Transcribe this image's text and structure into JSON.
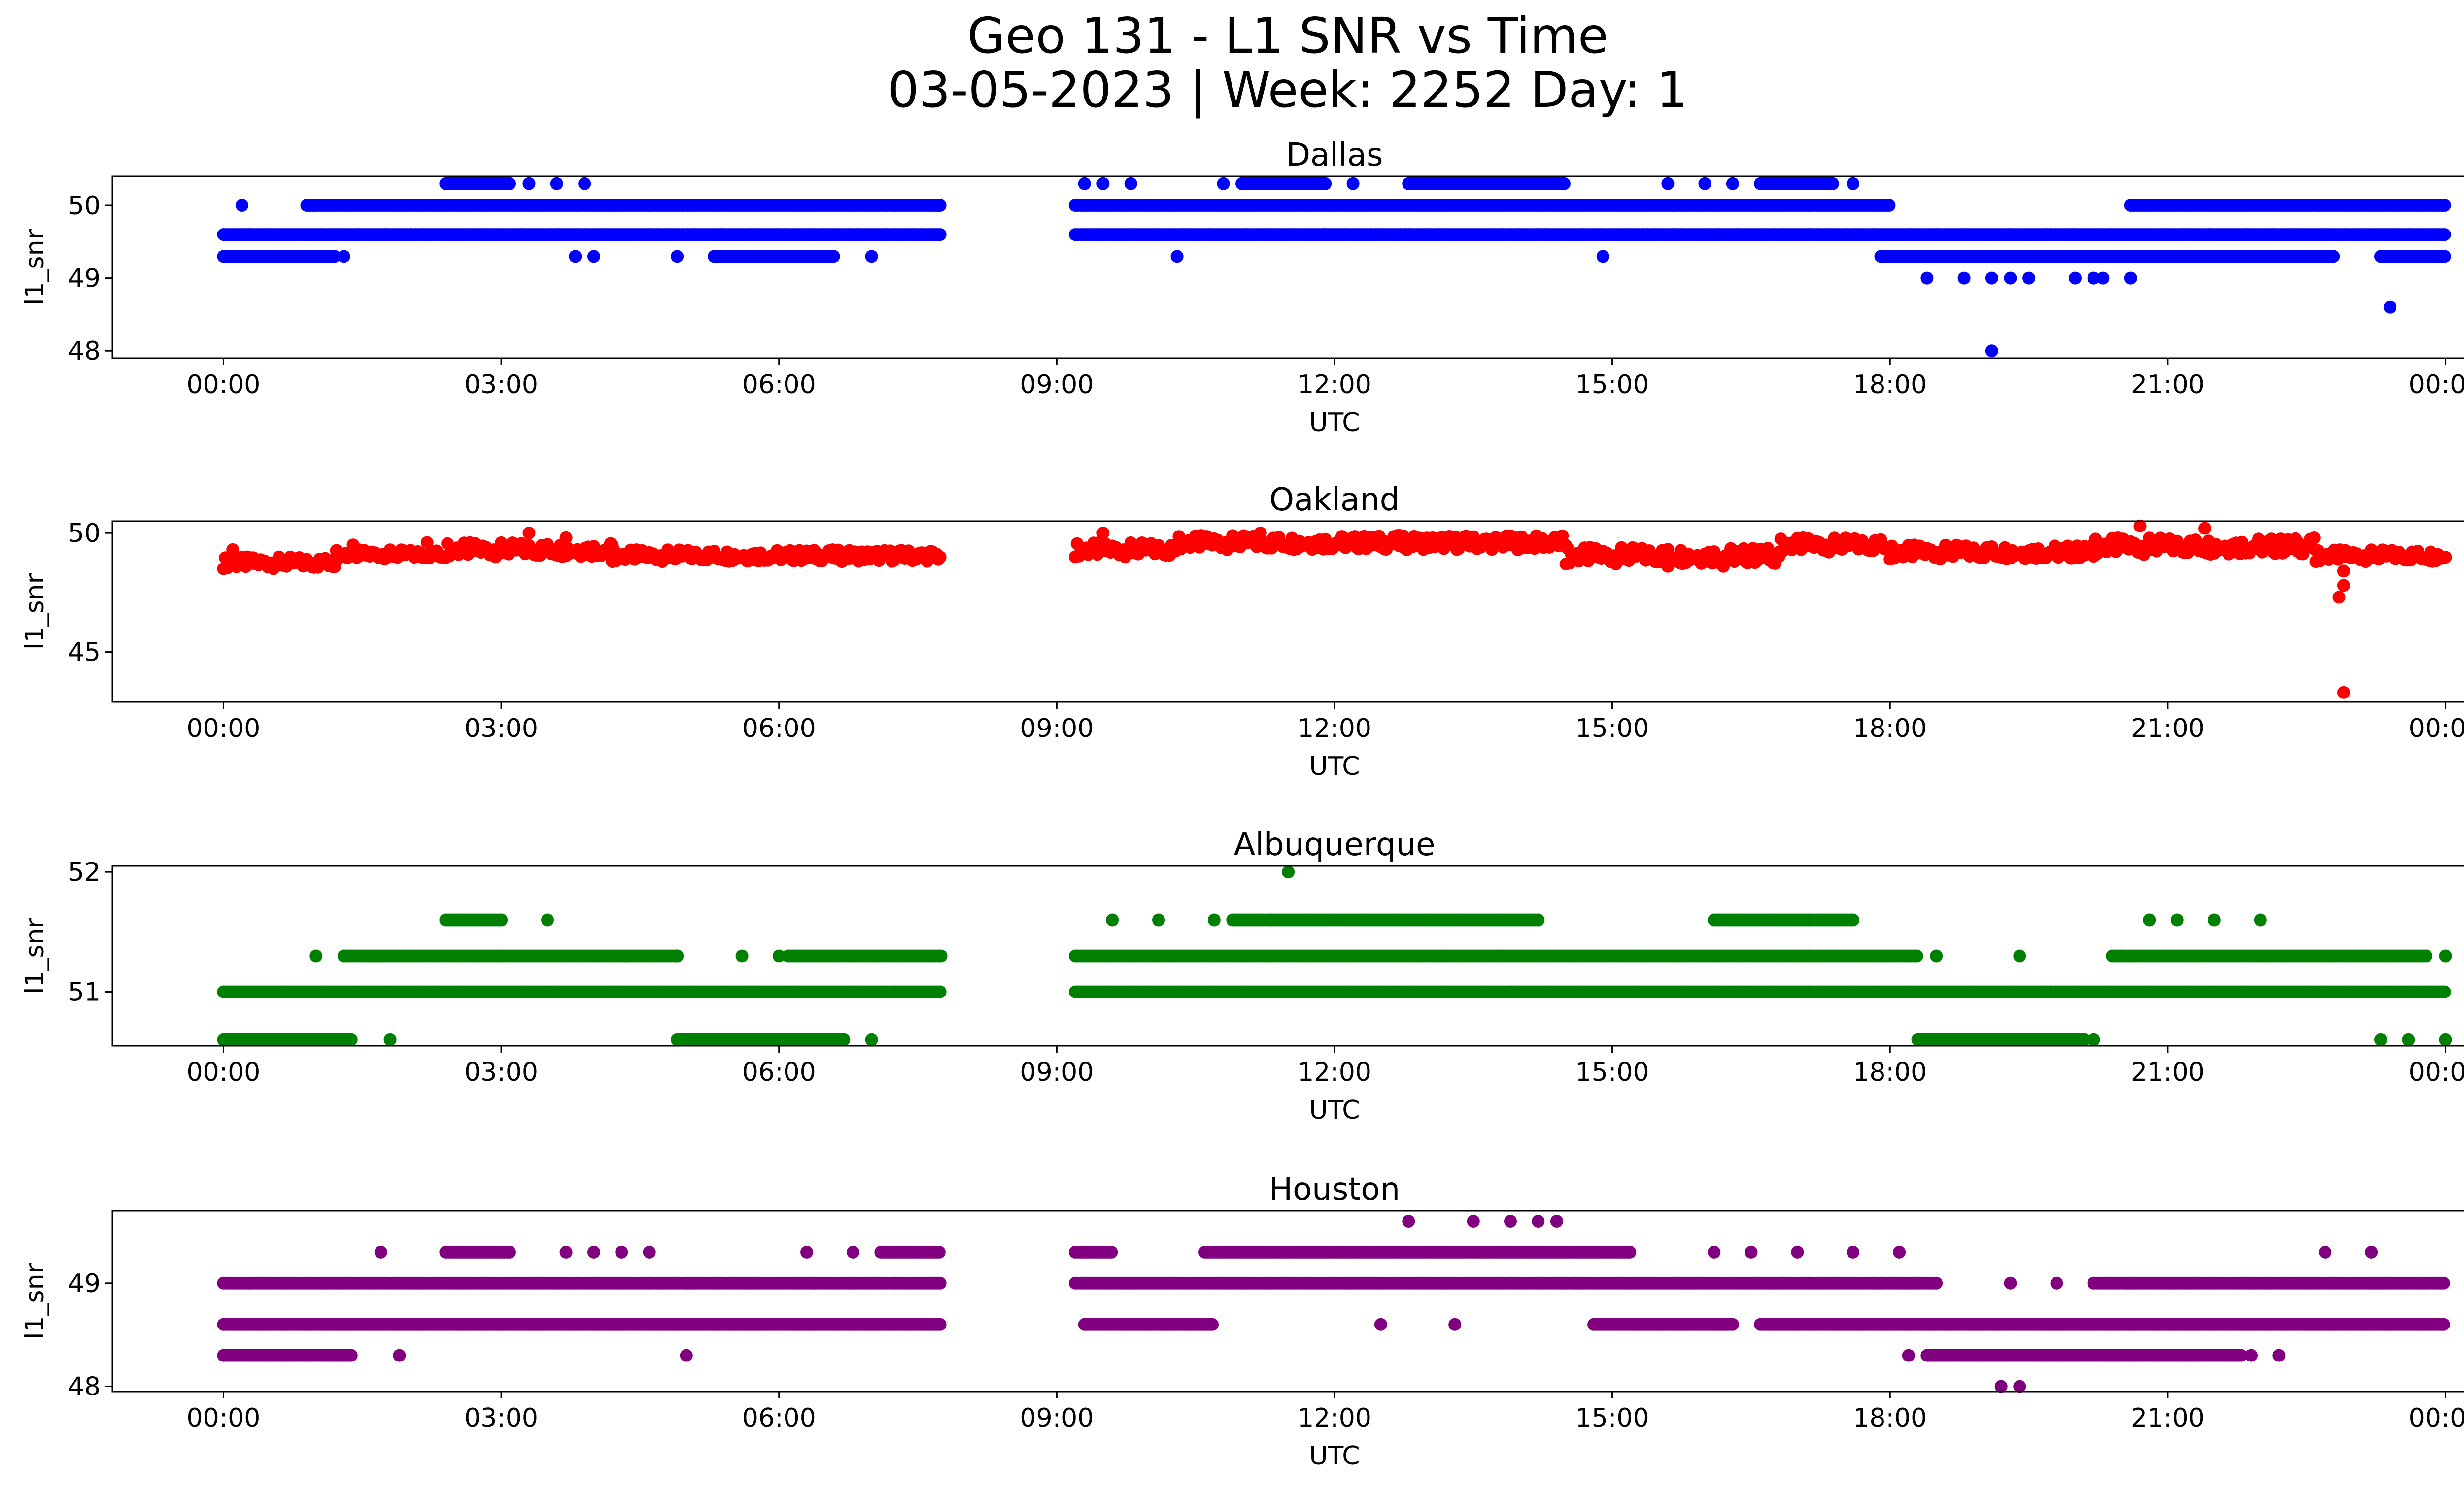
{
  "figure": {
    "title_line1": "Geo 131 - L1 SNR vs Time",
    "title_line2": "03-05-2023 | Week: 2252 Day: 1"
  },
  "chart_data": [
    {
      "type": "scatter",
      "title": "Dallas",
      "xlabel": "UTC",
      "ylabel": "l1_snr",
      "color": "#0000ff",
      "x_ticks": [
        "00:00",
        "03:00",
        "06:00",
        "09:00",
        "12:00",
        "15:00",
        "18:00",
        "21:00",
        "00:00"
      ],
      "x_unit": "hours UTC",
      "xlim": [
        -1.2,
        25.2
      ],
      "y_ticks": [
        48,
        49,
        50
      ],
      "ylim": [
        47.9,
        50.4
      ],
      "series": [
        {
          "values": [
            {
              "level": 49.6,
              "from": 0.0,
              "to": 7.75
            },
            {
              "level": 49.6,
              "from": 9.2,
              "to": 24.0
            },
            {
              "level": 50.0,
              "from": 0.9,
              "to": 4.2
            },
            {
              "level": 50.0,
              "from": 4.2,
              "to": 7.75
            },
            {
              "level": 50.0,
              "from": 9.2,
              "to": 18.0
            },
            {
              "level": 50.0,
              "from": 20.6,
              "to": 24.0
            },
            {
              "level": 49.3,
              "from": 0.0,
              "to": 1.2
            },
            {
              "level": 49.3,
              "from": 5.3,
              "to": 6.6
            },
            {
              "level": 49.3,
              "from": 17.9,
              "to": 22.8
            },
            {
              "level": 49.3,
              "from": 23.3,
              "to": 24.0
            },
            {
              "level": 50.3,
              "from": 2.4,
              "to": 3.1
            },
            {
              "level": 50.3,
              "from": 11.0,
              "to": 11.9
            },
            {
              "level": 50.3,
              "from": 12.8,
              "to": 14.5
            },
            {
              "level": 50.3,
              "from": 16.6,
              "to": 17.4
            }
          ]
        },
        {
          "points": [
            [
              0.2,
              50.0
            ],
            [
              3.3,
              50.3
            ],
            [
              3.6,
              50.3
            ],
            [
              3.9,
              50.3
            ],
            [
              1.3,
              49.3
            ],
            [
              3.8,
              49.3
            ],
            [
              4.0,
              49.3
            ],
            [
              4.9,
              49.3
            ],
            [
              7.0,
              49.3
            ],
            [
              9.3,
              50.3
            ],
            [
              9.5,
              50.3
            ],
            [
              9.8,
              50.3
            ],
            [
              10.8,
              50.3
            ],
            [
              12.2,
              50.3
            ],
            [
              10.3,
              49.3
            ],
            [
              11.9,
              49.6
            ],
            [
              14.9,
              49.3
            ],
            [
              15.6,
              50.3
            ],
            [
              16.0,
              50.3
            ],
            [
              16.3,
              50.3
            ],
            [
              17.6,
              50.3
            ],
            [
              18.4,
              49.0
            ],
            [
              18.8,
              49.0
            ],
            [
              19.1,
              49.0
            ],
            [
              19.3,
              49.0
            ],
            [
              19.5,
              49.0
            ],
            [
              20.0,
              49.0
            ],
            [
              20.2,
              49.0
            ],
            [
              20.3,
              49.0
            ],
            [
              20.6,
              49.0
            ],
            [
              19.1,
              48.0
            ],
            [
              23.4,
              48.6
            ]
          ]
        }
      ]
    },
    {
      "type": "scatter",
      "title": "Oakland",
      "xlabel": "UTC",
      "ylabel": "l1_snr",
      "color": "#ff0000",
      "x_ticks": [
        "00:00",
        "03:00",
        "06:00",
        "09:00",
        "12:00",
        "15:00",
        "18:00",
        "21:00",
        "00:00"
      ],
      "x_unit": "hours UTC",
      "xlim": [
        -1.2,
        25.2
      ],
      "y_ticks": [
        45,
        50
      ],
      "ylim": [
        42.9,
        50.5
      ],
      "series": [
        {
          "values": [
            {
              "from": 0.0,
              "to": 1.2,
              "low": 48.5,
              "high": 49.0
            },
            {
              "from": 1.2,
              "to": 2.4,
              "low": 48.9,
              "high": 49.3
            },
            {
              "from": 2.4,
              "to": 4.2,
              "low": 49.0,
              "high": 49.6
            },
            {
              "from": 4.2,
              "to": 7.75,
              "low": 48.8,
              "high": 49.3
            },
            {
              "from": 9.2,
              "to": 10.3,
              "low": 49.0,
              "high": 49.6
            },
            {
              "from": 10.3,
              "to": 14.5,
              "low": 49.3,
              "high": 49.9
            },
            {
              "from": 14.5,
              "to": 16.8,
              "low": 48.7,
              "high": 49.4
            },
            {
              "from": 16.8,
              "to": 18.0,
              "low": 49.2,
              "high": 49.8
            },
            {
              "from": 18.0,
              "to": 20.2,
              "low": 48.9,
              "high": 49.5
            },
            {
              "from": 20.2,
              "to": 22.6,
              "low": 49.1,
              "high": 49.8
            },
            {
              "from": 22.6,
              "to": 24.0,
              "low": 48.8,
              "high": 49.3
            }
          ]
        },
        {
          "points": [
            [
              0.1,
              49.3
            ],
            [
              1.4,
              49.5
            ],
            [
              2.2,
              49.6
            ],
            [
              3.3,
              50.0
            ],
            [
              3.7,
              49.8
            ],
            [
              9.5,
              50.0
            ],
            [
              11.2,
              50.0
            ],
            [
              12.7,
              49.9
            ],
            [
              15.2,
              49.0
            ],
            [
              15.6,
              48.6
            ],
            [
              16.2,
              48.6
            ],
            [
              20.7,
              50.3
            ],
            [
              21.4,
              50.2
            ],
            [
              22.9,
              48.4
            ],
            [
              22.9,
              47.8
            ],
            [
              22.85,
              47.3
            ],
            [
              22.9,
              43.3
            ]
          ]
        }
      ]
    },
    {
      "type": "scatter",
      "title": "Albuquerque",
      "xlabel": "UTC",
      "ylabel": "l1_snr",
      "color": "#008000",
      "x_ticks": [
        "00:00",
        "03:00",
        "06:00",
        "09:00",
        "12:00",
        "15:00",
        "18:00",
        "21:00",
        "00:00"
      ],
      "x_unit": "hours UTC",
      "xlim": [
        -1.2,
        25.2
      ],
      "y_ticks": [
        51,
        52
      ],
      "ylim": [
        50.55,
        52.05
      ],
      "series": [
        {
          "values": [
            {
              "level": 51.0,
              "from": 0.0,
              "to": 7.75
            },
            {
              "level": 51.0,
              "from": 9.2,
              "to": 24.0
            },
            {
              "level": 51.3,
              "from": 1.3,
              "to": 4.9
            },
            {
              "level": 51.3,
              "from": 6.1,
              "to": 7.75
            },
            {
              "level": 51.3,
              "from": 9.2,
              "to": 18.3
            },
            {
              "level": 51.3,
              "from": 20.4,
              "to": 23.8
            },
            {
              "level": 50.6,
              "from": 0.0,
              "to": 1.4
            },
            {
              "level": 50.6,
              "from": 4.9,
              "to": 6.7
            },
            {
              "level": 50.6,
              "from": 18.3,
              "to": 20.1
            },
            {
              "level": 51.6,
              "from": 2.4,
              "to": 3.0
            },
            {
              "level": 51.6,
              "from": 10.9,
              "to": 14.2
            },
            {
              "level": 51.6,
              "from": 16.1,
              "to": 17.6
            }
          ]
        },
        {
          "points": [
            [
              1.0,
              51.3
            ],
            [
              4.9,
              51.3
            ],
            [
              5.6,
              51.3
            ],
            [
              6.0,
              51.3
            ],
            [
              1.8,
              50.6
            ],
            [
              6.7,
              50.6
            ],
            [
              7.0,
              50.6
            ],
            [
              3.5,
              51.6
            ],
            [
              9.6,
              51.6
            ],
            [
              10.1,
              51.6
            ],
            [
              10.7,
              51.6
            ],
            [
              11.5,
              52.0
            ],
            [
              18.5,
              51.3
            ],
            [
              19.4,
              51.3
            ],
            [
              20.8,
              51.6
            ],
            [
              21.1,
              51.6
            ],
            [
              21.5,
              51.6
            ],
            [
              22.0,
              51.6
            ],
            [
              20.2,
              50.6
            ],
            [
              23.3,
              50.6
            ],
            [
              23.6,
              50.6
            ],
            [
              24.0,
              50.6
            ],
            [
              24.0,
              51.3
            ]
          ]
        }
      ]
    },
    {
      "type": "scatter",
      "title": "Houston",
      "xlabel": "UTC",
      "ylabel": "l1_snr",
      "color": "#800080",
      "x_ticks": [
        "00:00",
        "03:00",
        "06:00",
        "09:00",
        "12:00",
        "15:00",
        "18:00",
        "21:00",
        "00:00"
      ],
      "x_unit": "hours UTC",
      "xlim": [
        -1.2,
        25.2
      ],
      "y_ticks": [
        48,
        49
      ],
      "ylim": [
        47.95,
        49.7
      ],
      "series": [
        {
          "values": [
            {
              "level": 49.0,
              "from": 0.0,
              "to": 7.75
            },
            {
              "level": 49.0,
              "from": 9.2,
              "to": 18.5
            },
            {
              "level": 49.0,
              "from": 20.2,
              "to": 24.0
            },
            {
              "level": 48.6,
              "from": 0.0,
              "to": 3.0
            },
            {
              "level": 48.6,
              "from": 3.0,
              "to": 7.75
            },
            {
              "level": 48.6,
              "from": 9.3,
              "to": 10.7
            },
            {
              "level": 48.6,
              "from": 14.8,
              "to": 16.3
            },
            {
              "level": 48.6,
              "from": 16.6,
              "to": 24.0
            },
            {
              "level": 48.3,
              "from": 0.0,
              "to": 1.4
            },
            {
              "level": 48.3,
              "from": 18.4,
              "to": 21.8
            },
            {
              "level": 49.3,
              "from": 2.4,
              "to": 3.1
            },
            {
              "level": 49.3,
              "from": 7.1,
              "to": 7.75
            },
            {
              "level": 49.3,
              "from": 9.2,
              "to": 9.6
            },
            {
              "level": 49.3,
              "from": 10.6,
              "to": 15.2
            }
          ]
        },
        {
          "points": [
            [
              1.7,
              49.3
            ],
            [
              3.7,
              49.3
            ],
            [
              4.0,
              49.3
            ],
            [
              4.3,
              49.3
            ],
            [
              4.6,
              49.3
            ],
            [
              6.3,
              49.3
            ],
            [
              6.8,
              49.3
            ],
            [
              1.9,
              48.3
            ],
            [
              5.0,
              48.3
            ],
            [
              12.5,
              48.6
            ],
            [
              13.3,
              48.6
            ],
            [
              16.1,
              49.3
            ],
            [
              16.5,
              49.3
            ],
            [
              17.0,
              49.3
            ],
            [
              17.6,
              49.3
            ],
            [
              18.1,
              49.3
            ],
            [
              12.8,
              49.6
            ],
            [
              13.5,
              49.6
            ],
            [
              13.9,
              49.6
            ],
            [
              14.2,
              49.6
            ],
            [
              14.4,
              49.6
            ],
            [
              18.2,
              48.3
            ],
            [
              21.9,
              48.3
            ],
            [
              22.2,
              48.3
            ],
            [
              19.2,
              48.0
            ],
            [
              19.4,
              48.0
            ],
            [
              19.3,
              49.0
            ],
            [
              19.8,
              49.0
            ],
            [
              22.7,
              49.3
            ],
            [
              23.2,
              49.3
            ]
          ]
        }
      ]
    }
  ]
}
